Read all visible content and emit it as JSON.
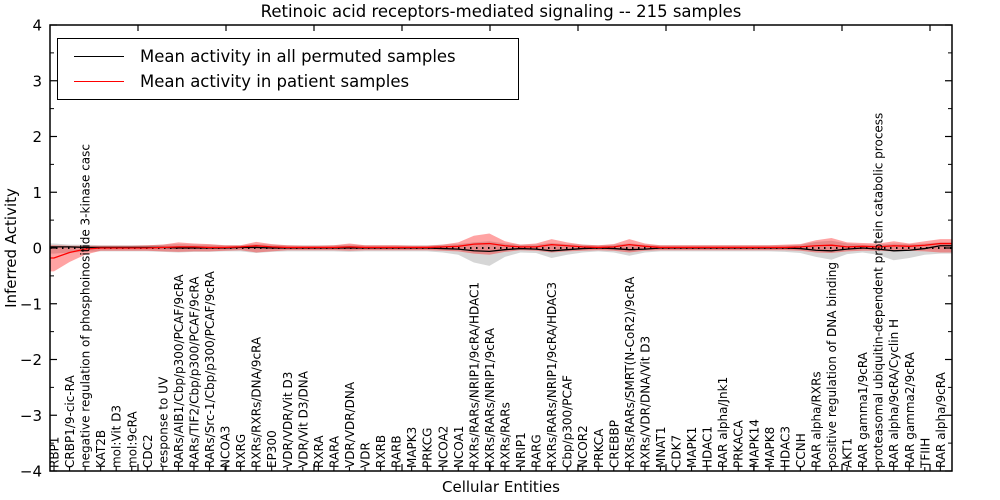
{
  "figure": {
    "title": "Retinoic acid receptors-mediated signaling -- 215 samples",
    "xlabel": "Cellular Entities",
    "ylabel": "Inferred Activity"
  },
  "legend": {
    "entries": [
      {
        "label": "Mean activity in all permuted samples",
        "color": "#000000"
      },
      {
        "label": "Mean activity in patient samples",
        "color": "#ff0000"
      }
    ]
  },
  "chart_data": {
    "type": "line",
    "title": "Retinoic acid receptors-mediated signaling -- 215 samples",
    "xlabel": "Cellular Entities",
    "ylabel": "Inferred Activity",
    "ylim": [
      -4,
      4
    ],
    "yticks": [
      -4,
      -3,
      -2,
      -1,
      0,
      1,
      2,
      3,
      4
    ],
    "grid": false,
    "legend_position": "upper left",
    "zero_line": true,
    "categories": [
      "RBP1",
      "CRBP1/9-cic-RA",
      "negative regulation of phosphoinositide 3-kinase casc",
      "KAT2B",
      "mol:Vit D3",
      "mol:9cRA",
      "CDC2",
      "response to UV",
      "RARs/AIB1/Cbp/p300/PCAF/9cRA",
      "RARs/TIF2/Cbp/p300/PCAF/9cRA",
      "RARs/Src-1/Cbp/p300/PCAF/9cRA",
      "NCOA3",
      "RXRG",
      "RXRs/RXRs/DNA/9cRA",
      "EP300",
      "VDR/VDR/Vit D3",
      "VDR/Vit D3/DNA",
      "RXRA",
      "RARA",
      "VDR/VDR/DNA",
      "VDR",
      "RXRB",
      "RARB",
      "MAPK3",
      "PRKCG",
      "NCOA2",
      "NCOA1",
      "RXRs/RARs/NRIP1/9cRA/HDAC1",
      "RXRs/RARs/NRIP1/9cRA",
      "RXRs/RARs",
      "NRIP1",
      "RARG",
      "RXRs/RARs/NRIP1/9cRA/HDAC3",
      "Cbp/p300/PCAF",
      "NCOR2",
      "PRKCA",
      "CREBBP",
      "RXRs/RARs/SMRT(N-CoR2)/9cRA",
      "RXRs/VDR/DNA/Vit D3",
      "MNAT1",
      "CDK7",
      "MAPK1",
      "HDAC1",
      "RAR alpha/Jnk1",
      "PRKACA",
      "MAPK14",
      "MAPK8",
      "HDAC3",
      "CCNH",
      "RAR alpha/RXRs",
      "positive regulation of DNA binding",
      "AKT1",
      "RAR gamma1/9cRA",
      "proteasomal ubiquitin-dependent protein catabolic process",
      "RAR alpha/9cRA/Cyclin H",
      "RAR gamma2/9cRA",
      "TFIIH",
      "RAR alpha/9cRA"
    ],
    "series": [
      {
        "name": "Mean activity in all permuted samples",
        "color": "#000000",
        "values": [
          0.02,
          0.02,
          0.01,
          0.01,
          0.01,
          0.01,
          0.01,
          0.01,
          0.0,
          0.0,
          0.0,
          0.0,
          0.01,
          0.01,
          0.0,
          0.0,
          0.0,
          0.0,
          0.0,
          0.0,
          0.0,
          0.0,
          0.0,
          0.0,
          0.0,
          -0.01,
          -0.02,
          -0.05,
          -0.06,
          -0.03,
          -0.01,
          -0.02,
          -0.05,
          -0.03,
          -0.01,
          0.0,
          -0.01,
          -0.03,
          -0.02,
          0.0,
          0.0,
          0.0,
          0.0,
          0.0,
          0.0,
          0.0,
          0.0,
          0.0,
          -0.01,
          -0.04,
          -0.05,
          -0.02,
          0.0,
          -0.02,
          -0.05,
          -0.04,
          -0.01,
          0.04
        ]
      },
      {
        "name": "Mean activity in patient samples",
        "color": "#ff0000",
        "values": [
          -0.18,
          -0.08,
          -0.02,
          0.0,
          0.0,
          0.0,
          0.0,
          0.01,
          0.02,
          0.02,
          0.01,
          0.01,
          0.02,
          0.04,
          0.02,
          0.01,
          0.01,
          0.01,
          0.01,
          0.02,
          0.01,
          0.01,
          0.01,
          0.01,
          0.01,
          0.02,
          0.03,
          0.07,
          0.08,
          0.04,
          0.02,
          0.02,
          0.06,
          0.04,
          0.02,
          0.01,
          0.02,
          0.06,
          0.03,
          0.01,
          0.01,
          0.01,
          0.01,
          0.01,
          0.01,
          0.01,
          0.01,
          0.01,
          0.02,
          0.04,
          0.05,
          0.02,
          0.03,
          0.02,
          0.04,
          0.03,
          0.05,
          0.08
        ]
      }
    ],
    "bands": [
      {
        "name": "permuted-range",
        "color": "#7f7f7f",
        "alpha": 0.32,
        "upper": [
          0.08,
          0.06,
          0.06,
          0.05,
          0.05,
          0.05,
          0.05,
          0.06,
          0.07,
          0.06,
          0.06,
          0.05,
          0.05,
          0.07,
          0.06,
          0.05,
          0.05,
          0.05,
          0.05,
          0.06,
          0.05,
          0.05,
          0.05,
          0.05,
          0.05,
          0.06,
          0.07,
          0.1,
          0.12,
          0.08,
          0.06,
          0.06,
          0.09,
          0.07,
          0.06,
          0.05,
          0.06,
          0.08,
          0.06,
          0.05,
          0.05,
          0.05,
          0.05,
          0.05,
          0.05,
          0.05,
          0.05,
          0.05,
          0.06,
          0.11,
          0.13,
          0.08,
          0.06,
          0.06,
          0.08,
          0.07,
          0.08,
          0.1
        ],
        "lower": [
          -0.1,
          -0.08,
          -0.07,
          -0.06,
          -0.06,
          -0.06,
          -0.06,
          -0.07,
          -0.08,
          -0.07,
          -0.07,
          -0.06,
          -0.06,
          -0.09,
          -0.07,
          -0.06,
          -0.06,
          -0.06,
          -0.06,
          -0.07,
          -0.06,
          -0.06,
          -0.06,
          -0.06,
          -0.06,
          -0.08,
          -0.12,
          -0.26,
          -0.32,
          -0.16,
          -0.08,
          -0.09,
          -0.18,
          -0.12,
          -0.08,
          -0.06,
          -0.08,
          -0.14,
          -0.08,
          -0.06,
          -0.06,
          -0.06,
          -0.06,
          -0.06,
          -0.06,
          -0.06,
          -0.06,
          -0.07,
          -0.09,
          -0.16,
          -0.21,
          -0.11,
          -0.08,
          -0.12,
          -0.22,
          -0.18,
          -0.12,
          -0.1
        ]
      },
      {
        "name": "patient-range",
        "color": "#ff1a1a",
        "alpha": 0.4,
        "upper": [
          0.05,
          0.04,
          0.04,
          0.04,
          0.04,
          0.04,
          0.05,
          0.06,
          0.1,
          0.08,
          0.07,
          0.05,
          0.05,
          0.11,
          0.07,
          0.05,
          0.04,
          0.04,
          0.05,
          0.08,
          0.05,
          0.05,
          0.05,
          0.04,
          0.04,
          0.06,
          0.1,
          0.22,
          0.26,
          0.12,
          0.06,
          0.08,
          0.16,
          0.1,
          0.06,
          0.05,
          0.07,
          0.16,
          0.08,
          0.05,
          0.05,
          0.05,
          0.05,
          0.05,
          0.05,
          0.05,
          0.05,
          0.06,
          0.07,
          0.14,
          0.18,
          0.1,
          0.09,
          0.08,
          0.12,
          0.08,
          0.12,
          0.16
        ],
        "lower": [
          -0.42,
          -0.25,
          -0.12,
          -0.05,
          -0.05,
          -0.05,
          -0.05,
          -0.06,
          -0.07,
          -0.06,
          -0.06,
          -0.05,
          -0.04,
          -0.08,
          -0.06,
          -0.04,
          -0.04,
          -0.04,
          -0.04,
          -0.05,
          -0.04,
          -0.04,
          -0.04,
          -0.04,
          -0.04,
          -0.05,
          -0.06,
          -0.1,
          -0.12,
          -0.07,
          -0.04,
          -0.05,
          -0.08,
          -0.06,
          -0.05,
          -0.04,
          -0.05,
          -0.08,
          -0.05,
          -0.04,
          -0.04,
          -0.04,
          -0.04,
          -0.04,
          -0.04,
          -0.04,
          -0.04,
          -0.04,
          -0.05,
          -0.08,
          -0.09,
          -0.06,
          -0.05,
          -0.05,
          -0.06,
          -0.05,
          -0.06,
          -0.08
        ]
      }
    ]
  }
}
